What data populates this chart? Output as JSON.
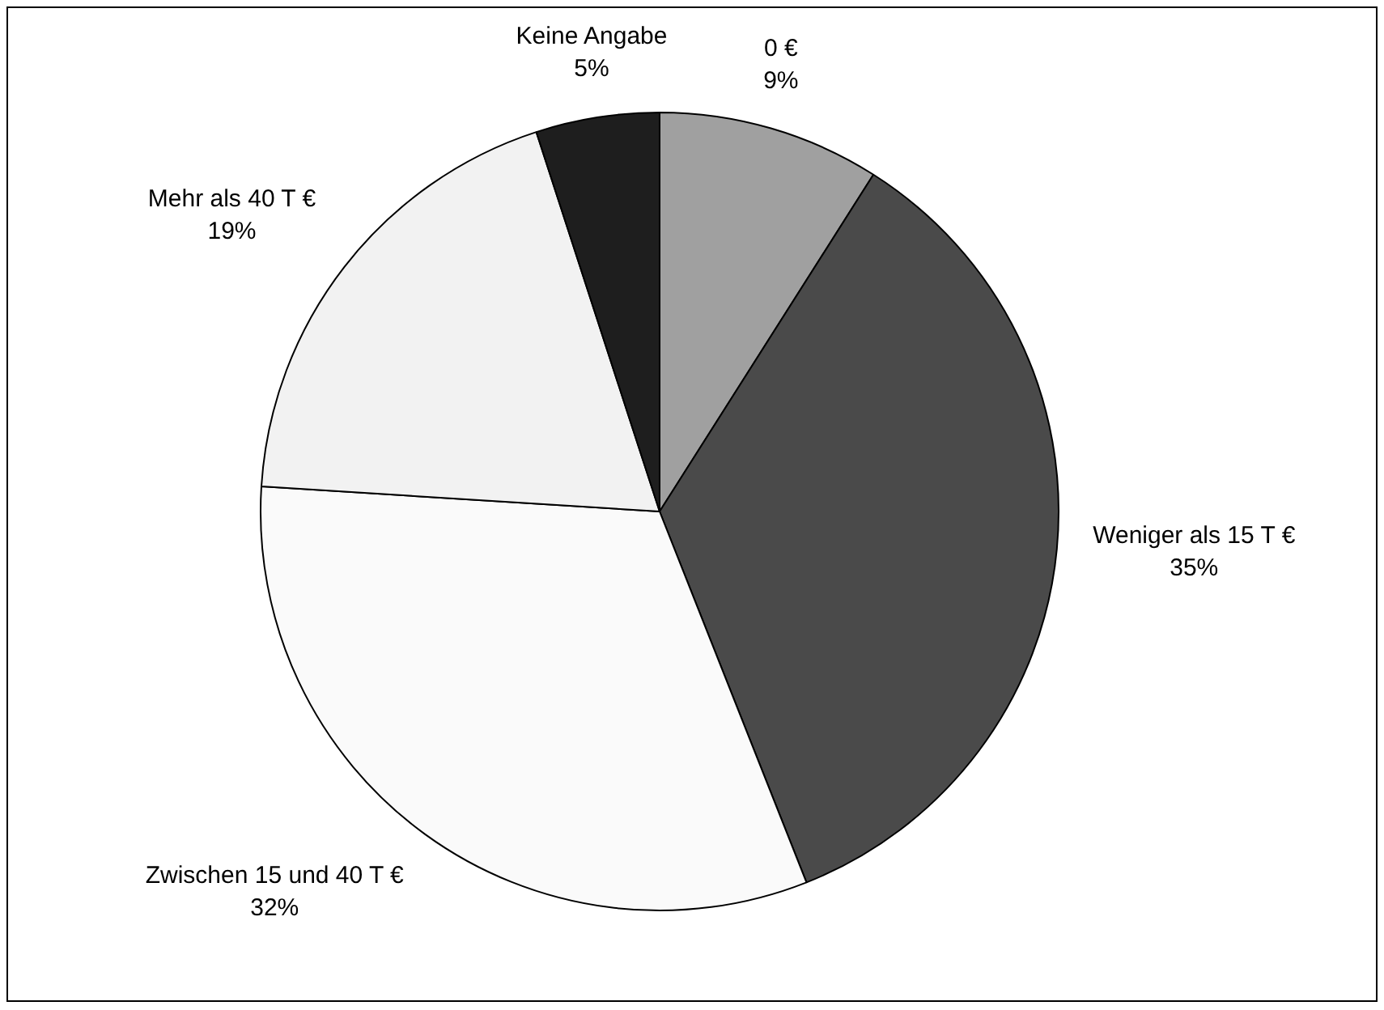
{
  "chart_data": {
    "type": "pie",
    "categories": [
      "0 €",
      "Weniger als 15 T €",
      "Zwischen 15 und 40 T €",
      "Mehr als 40 T €",
      "Keine Angabe"
    ],
    "values": [
      9,
      35,
      32,
      19,
      5
    ],
    "colors": [
      "#a0a0a0",
      "#4a4a4a",
      "#fafafa",
      "#f2f2f2",
      "#1e1e1e"
    ],
    "value_labels": [
      "9%",
      "35%",
      "32%",
      "19%",
      "5%"
    ],
    "legend": false
  }
}
